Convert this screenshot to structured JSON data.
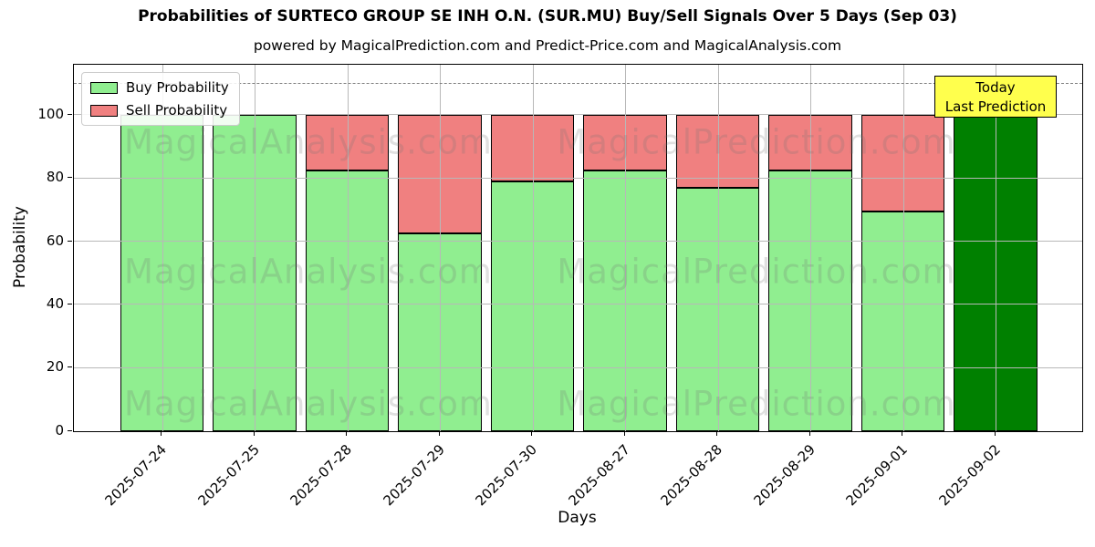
{
  "title": "Probabilities of SURTECO GROUP SE INH O.N. (SUR.MU) Buy/Sell Signals Over 5 Days (Sep 03)",
  "subtitle": "powered by MagicalPrediction.com and Predict-Price.com and MagicalAnalysis.com",
  "axes": {
    "xlabel": "Days",
    "ylabel": "Probability"
  },
  "legend": {
    "items": [
      {
        "label": "Buy Probability",
        "color": "#90EE90"
      },
      {
        "label": "Sell Probability",
        "color": "#F08080"
      }
    ]
  },
  "annotation": {
    "line1": "Today",
    "line2": "Last Prediction",
    "bg_color": "#FFFF4D"
  },
  "watermarks": {
    "left_text": "MagicalAnalysis.com",
    "right_text": "MagicalPrediction.com"
  },
  "colors": {
    "buy": "#90EE90",
    "sell": "#F08080",
    "today_bar": "#008000",
    "grid": "#b8b8b8",
    "dashed_line": "#7f7f7f"
  },
  "chart_data": {
    "type": "bar",
    "stacked": true,
    "title": "Probabilities of SURTECO GROUP SE INH O.N. (SUR.MU) Buy/Sell Signals Over 5 Days (Sep 03)",
    "xlabel": "Days",
    "ylabel": "Probability",
    "categories": [
      "2025-07-24",
      "2025-07-25",
      "2025-07-28",
      "2025-07-29",
      "2025-07-30",
      "2025-08-27",
      "2025-08-28",
      "2025-08-29",
      "2025-09-01",
      "2025-09-02"
    ],
    "series": [
      {
        "name": "Buy Probability",
        "color": "#90EE90",
        "values": [
          100,
          100,
          82.5,
          62.5,
          79,
          82.5,
          77,
          82.5,
          69.5,
          100
        ]
      },
      {
        "name": "Sell Probability",
        "color": "#F08080",
        "values": [
          0,
          0,
          17.5,
          37.5,
          21,
          17.5,
          23,
          17.5,
          30.5,
          0
        ]
      }
    ],
    "today_bar": {
      "category": "2025-09-02",
      "index": 9,
      "color": "#008000",
      "annotation": "Today Last Prediction"
    },
    "yticks": [
      0,
      20,
      40,
      60,
      80,
      100
    ],
    "ylim": [
      0,
      116
    ],
    "dashed_line_y": 110,
    "grid": true,
    "legend_position": "upper left"
  }
}
